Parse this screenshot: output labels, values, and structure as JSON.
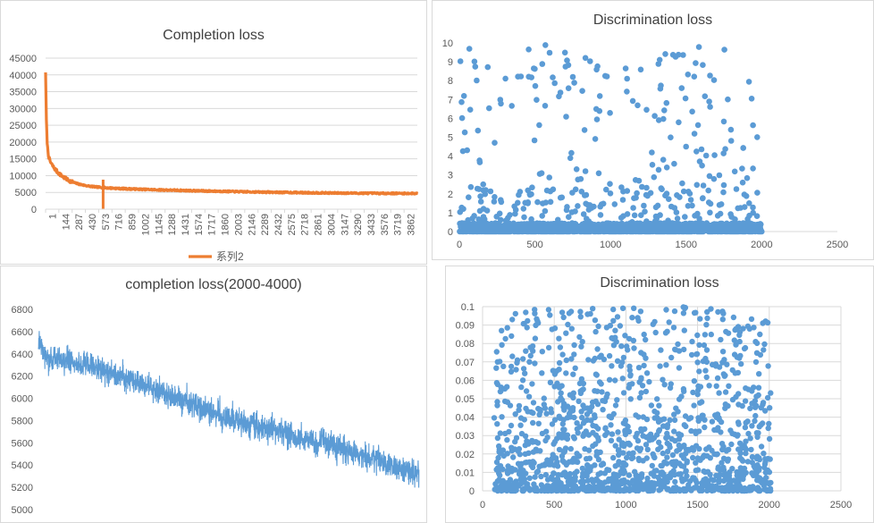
{
  "colors": {
    "orange": "#ed7d31",
    "blue": "#5b9bd5",
    "grid": "#d9d9d9"
  },
  "chart_data": [
    {
      "type": "line",
      "title": "Completion loss",
      "x_tick_labels": [
        "1",
        "144",
        "287",
        "430",
        "573",
        "716",
        "859",
        "1002",
        "1145",
        "1288",
        "1431",
        "1574",
        "1717",
        "1860",
        "2003",
        "2146",
        "2289",
        "2432",
        "2575",
        "2718",
        "2861",
        "3004",
        "3147",
        "3290",
        "3433",
        "3576",
        "3719",
        "3862"
      ],
      "xlim": [
        1,
        4000
      ],
      "ylim": [
        0,
        45000
      ],
      "y_ticks": [
        0,
        5000,
        10000,
        15000,
        20000,
        25000,
        30000,
        35000,
        40000,
        45000
      ],
      "grid": true,
      "legend": "bottom",
      "series": [
        {
          "name": "系列2",
          "color": "#ed7d31",
          "curve": {
            "start": 41000,
            "floor": 4700,
            "a": 25000,
            "b": 10000,
            "tau1": 10,
            "tau2": 155,
            "drift": 0.54
          },
          "spike": {
            "x": 620,
            "y": 0
          },
          "noise": 450
        }
      ]
    },
    {
      "type": "scatter",
      "title": "Discrimination loss",
      "xlim": [
        0,
        2500
      ],
      "x_ticks": [
        0,
        500,
        1000,
        1500,
        2000,
        2500
      ],
      "ylim": [
        0,
        10
      ],
      "y_ticks": [
        0,
        1,
        2,
        3,
        4,
        5,
        6,
        7,
        8,
        9,
        10
      ],
      "grid": false,
      "series": [
        {
          "color": "#5b9bd5",
          "n_points": 2000,
          "x_range": [
            1,
            2000
          ],
          "dense_band": [
            0,
            0.45
          ],
          "sparse_band": [
            0.5,
            9.9
          ],
          "sparse_points": 320
        }
      ]
    },
    {
      "type": "line",
      "title": "completion loss(2000-4000)",
      "xlim": [
        2000,
        4000
      ],
      "ylim": [
        5000,
        6800
      ],
      "y_ticks": [
        5000,
        5200,
        5400,
        5600,
        5800,
        6000,
        6200,
        6400,
        6600,
        6800
      ],
      "grid": false,
      "series": [
        {
          "color": "#5b9bd5",
          "n_points": 2000,
          "start": 6390,
          "end": 5320,
          "noise": 85
        }
      ]
    },
    {
      "type": "scatter",
      "title": "Discrimination loss",
      "xlim": [
        0,
        2500
      ],
      "x_ticks": [
        0,
        500,
        1000,
        1500,
        2000,
        2500
      ],
      "ylim": [
        0,
        0.1
      ],
      "y_ticks": [
        "0",
        "0.01",
        "0.02",
        "0.03",
        "0.04",
        "0.05",
        "0.06",
        "0.07",
        "0.08",
        "0.09",
        "0.1"
      ],
      "grid": true,
      "series": [
        {
          "color": "#5b9bd5",
          "n_points": 1400,
          "x_range": [
            80,
            2010
          ],
          "y_range": [
            0,
            0.1
          ]
        }
      ]
    }
  ]
}
